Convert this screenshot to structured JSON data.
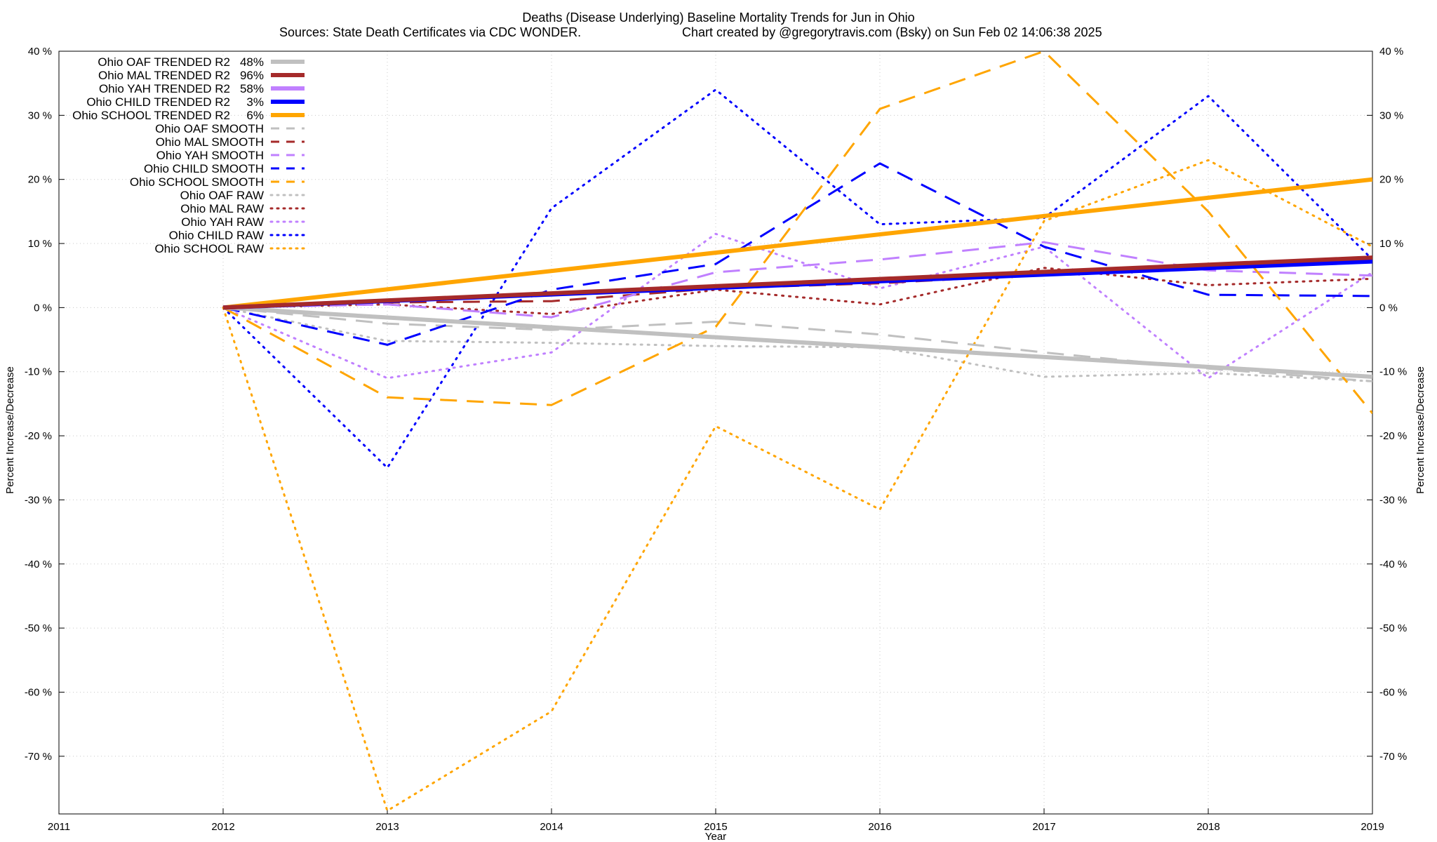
{
  "chart_data": {
    "type": "line",
    "title": "Deaths (Disease Underlying)  Baseline Mortality Trends for Jun in Ohio",
    "subtitle_left": "Sources: State Death Certificates via CDC WONDER.",
    "subtitle_right": "Chart created by @gregorytravis.com (Bsky) on Sun Feb 02 14:06:38 2025",
    "xlabel": "Year",
    "ylabel": "Percent Increase/Decrease",
    "y2label": "Percent Increase/Decrease",
    "xlim": [
      2011,
      2019
    ],
    "ylim": [
      -79,
      40
    ],
    "x_ticks": [
      "2011",
      "2012",
      "2013",
      "2014",
      "2015",
      "2016",
      "2017",
      "2018",
      "2019"
    ],
    "y_ticks": [
      40,
      30,
      20,
      10,
      0,
      -10,
      -20,
      -30,
      -40,
      -50,
      -60,
      -70
    ],
    "y_tick_labels": [
      "40 %",
      "30 %",
      "20 %",
      "10 %",
      "0 %",
      "-10 %",
      "-20 %",
      "-30 %",
      "-40 %",
      "-50 %",
      "-60 %",
      "-70 %"
    ],
    "grid": true,
    "legend_position": "top-left",
    "series": [
      {
        "name": "Ohio OAF TRENDED R2",
        "r2": "48%",
        "color": "#c0c0c0",
        "style": "solid",
        "x": [
          2012,
          2019
        ],
        "values": [
          0,
          -10.8
        ]
      },
      {
        "name": "Ohio MAL TRENDED R2",
        "r2": "96%",
        "color": "#a52a2a",
        "style": "solid",
        "x": [
          2012,
          2019
        ],
        "values": [
          0,
          7.8
        ]
      },
      {
        "name": "Ohio YAH TRENDED R2",
        "r2": "58%",
        "color": "#c080ff",
        "style": "solid",
        "x": [
          2012,
          2019
        ],
        "values": [
          0,
          7.5
        ]
      },
      {
        "name": "Ohio CHILD TRENDED R2",
        "r2": "3%",
        "color": "#0000ff",
        "style": "solid",
        "x": [
          2012,
          2019
        ],
        "values": [
          0,
          7.2
        ]
      },
      {
        "name": "Ohio SCHOOL TRENDED R2",
        "r2": "6%",
        "color": "#ffa500",
        "style": "solid",
        "x": [
          2012,
          2019
        ],
        "values": [
          0,
          20
        ]
      },
      {
        "name": "Ohio OAF SMOOTH",
        "r2": "",
        "color": "#c0c0c0",
        "style": "dashed",
        "x": [
          2012,
          2013,
          2014,
          2015,
          2016,
          2017,
          2018,
          2019
        ],
        "values": [
          0,
          -2.5,
          -3.5,
          -2.2,
          -4.2,
          -7,
          -9.5,
          -11.5
        ]
      },
      {
        "name": "Ohio MAL SMOOTH",
        "r2": "",
        "color": "#a52a2a",
        "style": "dashed",
        "x": [
          2012,
          2013,
          2014,
          2015,
          2016,
          2017,
          2018,
          2019
        ],
        "values": [
          0,
          0.8,
          1,
          3,
          3.8,
          5.2,
          6,
          7.5
        ]
      },
      {
        "name": "Ohio YAH SMOOTH",
        "r2": "",
        "color": "#c080ff",
        "style": "dashed",
        "x": [
          2012,
          2013,
          2014,
          2015,
          2016,
          2017,
          2018,
          2019
        ],
        "values": [
          0,
          0.5,
          -1.5,
          5.5,
          7.5,
          10.2,
          5.8,
          5
        ]
      },
      {
        "name": "Ohio CHILD SMOOTH",
        "r2": "",
        "color": "#0000ff",
        "style": "dashed",
        "x": [
          2012,
          2013,
          2014,
          2015,
          2016,
          2017,
          2018,
          2019
        ],
        "values": [
          0,
          -5.8,
          2.8,
          6.8,
          22.5,
          9.5,
          2,
          1.8
        ]
      },
      {
        "name": "Ohio SCHOOL SMOOTH",
        "r2": "",
        "color": "#ffa500",
        "style": "dashed",
        "x": [
          2012,
          2013,
          2014,
          2015,
          2016,
          2017,
          2018,
          2019
        ],
        "values": [
          0,
          -14,
          -15.2,
          -3,
          31,
          40,
          15,
          -16.5
        ]
      },
      {
        "name": "Ohio OAF RAW",
        "r2": "",
        "color": "#c0c0c0",
        "style": "dotted",
        "x": [
          2012,
          2013,
          2014,
          2015,
          2016,
          2017,
          2018,
          2019
        ],
        "values": [
          0,
          -5.2,
          -5.5,
          -6,
          -6.2,
          -10.8,
          -10.2,
          -11.5
        ]
      },
      {
        "name": "Ohio MAL RAW",
        "r2": "",
        "color": "#a52a2a",
        "style": "dotted",
        "x": [
          2012,
          2013,
          2014,
          2015,
          2016,
          2017,
          2018,
          2019
        ],
        "values": [
          0,
          0.5,
          -1,
          2.8,
          0.5,
          6.2,
          3.5,
          4.5
        ]
      },
      {
        "name": "Ohio YAH RAW",
        "r2": "",
        "color": "#c080ff",
        "style": "dotted",
        "x": [
          2012,
          2013,
          2014,
          2015,
          2016,
          2017,
          2018,
          2019
        ],
        "values": [
          0,
          -11,
          -7,
          11.5,
          3,
          9.5,
          -11,
          5.5
        ]
      },
      {
        "name": "Ohio CHILD RAW",
        "r2": "",
        "color": "#0000ff",
        "style": "dotted",
        "x": [
          2012,
          2013,
          2014,
          2015,
          2016,
          2017,
          2018,
          2019
        ],
        "values": [
          0,
          -25,
          15.5,
          34,
          13,
          14,
          33,
          7.5
        ]
      },
      {
        "name": "Ohio SCHOOL RAW",
        "r2": "",
        "color": "#ffa500",
        "style": "dotted",
        "x": [
          2012,
          2013,
          2014,
          2015,
          2016,
          2017,
          2018,
          2019
        ],
        "values": [
          0,
          -78.5,
          -63,
          -18.5,
          -31.5,
          13.5,
          23,
          9.5
        ]
      }
    ]
  }
}
